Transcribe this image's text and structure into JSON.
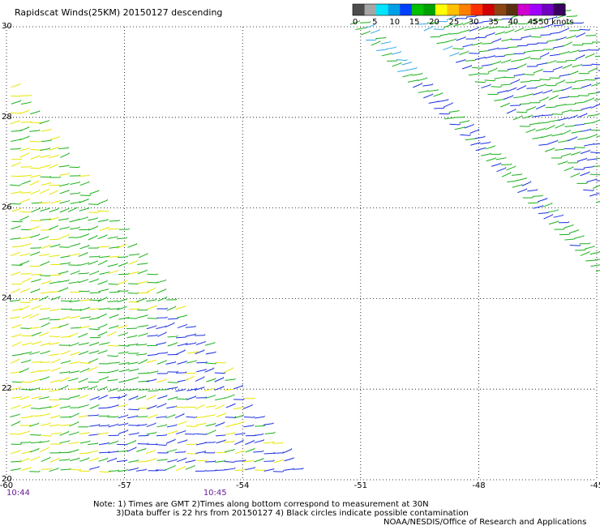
{
  "title": "Rapidscat Winds(25KM) 20150127 descending",
  "legend": {
    "labels": [
      "0",
      "5",
      "10",
      "15",
      "20",
      "25",
      "30",
      "35",
      "40",
      "45",
      ">50 knots"
    ],
    "colors": [
      "#4d4d4d",
      "#a6a6a6",
      "#00e5ff",
      "#00a0e6",
      "#0040ff",
      "#00c000",
      "#00a000",
      "#ffff00",
      "#ffc000",
      "#ff8000",
      "#ff3000",
      "#d00000",
      "#8b4513",
      "#5a3010",
      "#d000d0",
      "#a000ff",
      "#7000c0",
      "#3a0060"
    ]
  },
  "map": {
    "lon_min": -60,
    "lon_max": -45,
    "lat_min": 20,
    "lat_max": 30,
    "lon_ticks": [
      "-60",
      "-57",
      "-54",
      "-51",
      "-48",
      "-45"
    ],
    "lat_ticks": [
      "20",
      "22",
      "24",
      "26",
      "28",
      "30"
    ],
    "grid": "dotted"
  },
  "times": [
    {
      "label": "10:44",
      "lon": -60
    },
    {
      "label": "10:45",
      "lon": -54.7
    }
  ],
  "notes": {
    "line1": "Note: 1) Times are GMT 2)Times along bottom correspond to measurement at 30N",
    "line2": "3)Data buffer is 22 hrs from 20150127 4) Black circles indicate possible contamination",
    "credit": "NOAA/NESDIS/Office of Research and Applications"
  }
}
